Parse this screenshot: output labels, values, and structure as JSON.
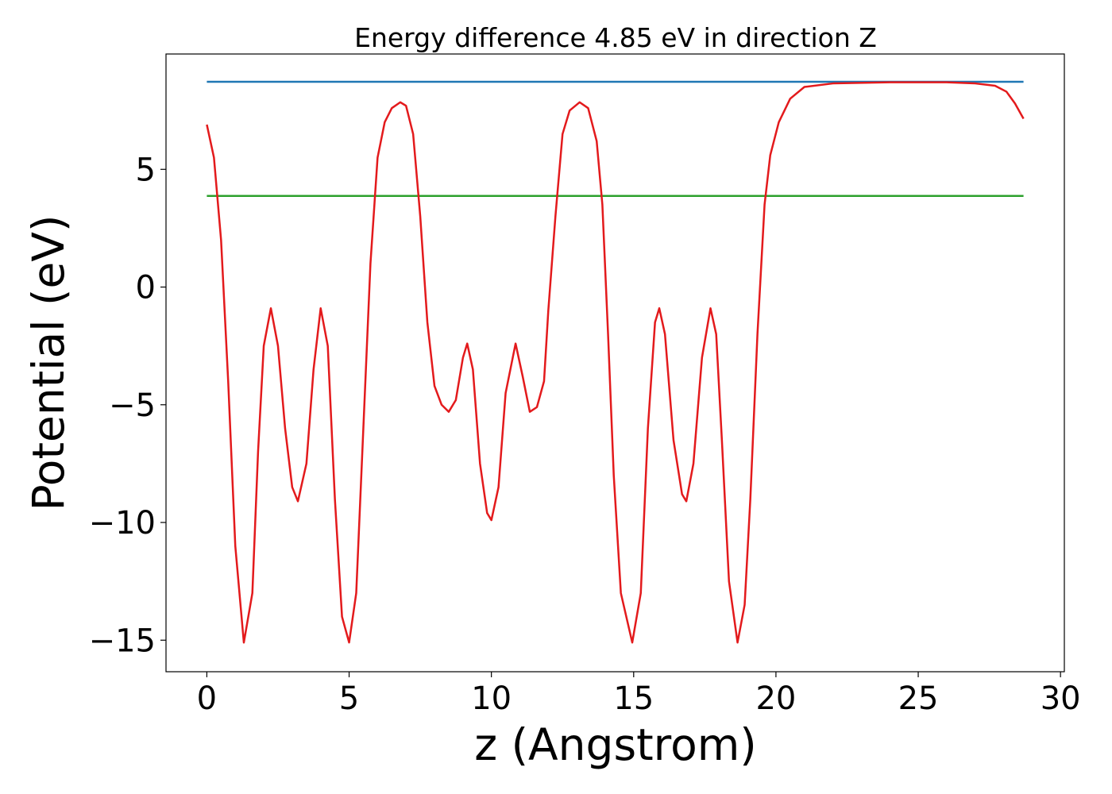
{
  "chart_data": {
    "type": "line",
    "title": "Energy difference 4.85 eV in direction Z",
    "xlabel": "z (Angstrom)",
    "ylabel": "Potential (eV)",
    "xlim": [
      -1.435,
      30.135
    ],
    "ylim": [
      -16.34,
      9.9
    ],
    "xticks": [
      0,
      5,
      10,
      15,
      20,
      25,
      30
    ],
    "yticks": [
      {
        "value": -15,
        "label": "−15"
      },
      {
        "value": -10,
        "label": "−10"
      },
      {
        "value": -5,
        "label": "−5"
      },
      0,
      5
    ],
    "grid": false,
    "series": [
      {
        "color": "#1f77b4",
        "x": [
          0,
          28.7
        ],
        "values": [
          8.72,
          8.72
        ]
      },
      {
        "color": "#2ca02c",
        "x": [
          0,
          28.7
        ],
        "values": [
          3.87,
          3.87
        ]
      },
      {
        "color": "#e31a1c",
        "x": [
          0,
          0.25,
          0.5,
          0.75,
          1.0,
          1.3,
          1.6,
          1.8,
          2.0,
          2.25,
          2.5,
          2.75,
          3.0,
          3.2,
          3.5,
          3.75,
          4.0,
          4.25,
          4.5,
          4.75,
          5.0,
          5.25,
          5.5,
          5.75,
          6.0,
          6.25,
          6.5,
          6.8,
          7.0,
          7.25,
          7.5,
          7.75,
          8.0,
          8.25,
          8.5,
          8.75,
          9.0,
          9.15,
          9.35,
          9.6,
          9.85,
          10.0,
          10.25,
          10.5,
          10.85,
          11.1,
          11.35,
          11.6,
          11.85,
          12.0,
          12.25,
          12.5,
          12.75,
          13.1,
          13.4,
          13.7,
          13.9,
          14.1,
          14.3,
          14.55,
          14.95,
          15.25,
          15.5,
          15.75,
          15.9,
          16.1,
          16.4,
          16.7,
          16.85,
          17.1,
          17.4,
          17.7,
          17.9,
          18.1,
          18.35,
          18.65,
          18.9,
          19.1,
          19.35,
          19.6,
          19.8,
          20.1,
          20.5,
          21.0,
          22.0,
          24.0,
          26.0,
          27.0,
          27.7,
          28.1,
          28.4,
          28.7
        ],
        "values": [
          6.9,
          5.5,
          2,
          -4,
          -11,
          -15.1,
          -13,
          -7,
          -2.5,
          -0.9,
          -2.5,
          -6,
          -8.5,
          -9.1,
          -7.5,
          -3.5,
          -0.9,
          -2.5,
          -9,
          -14,
          -15.1,
          -13,
          -6,
          1,
          5.5,
          7,
          7.6,
          7.85,
          7.7,
          6.5,
          3,
          -1.5,
          -4.2,
          -5,
          -5.3,
          -4.8,
          -3,
          -2.4,
          -3.5,
          -7.5,
          -9.6,
          -9.9,
          -8.5,
          -4.5,
          -2.4,
          -3.8,
          -5.3,
          -5.1,
          -4,
          -1,
          3,
          6.5,
          7.5,
          7.85,
          7.6,
          6.2,
          3.5,
          -2,
          -8,
          -13,
          -15.1,
          -13,
          -6,
          -1.5,
          -0.9,
          -2,
          -6.5,
          -8.8,
          -9.1,
          -7.5,
          -3,
          -0.9,
          -2,
          -6.5,
          -12.5,
          -15.1,
          -13.5,
          -9,
          -2,
          3.5,
          5.6,
          7,
          8.0,
          8.5,
          8.65,
          8.7,
          8.7,
          8.65,
          8.55,
          8.3,
          7.8,
          7.15
        ]
      }
    ]
  }
}
